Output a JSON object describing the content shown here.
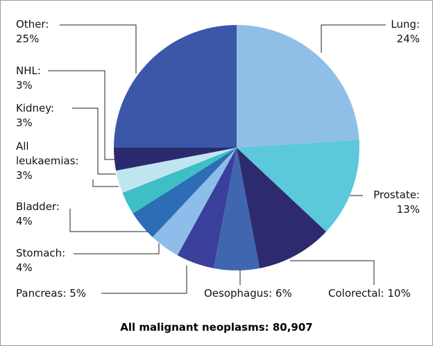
{
  "chart_data": {
    "type": "pie",
    "title": "All malignant neoplasms: 80,907",
    "categories": [
      "Lung:",
      "Prostate:",
      "Colorectal:",
      "Oesophagus:",
      "Pancreas:",
      "Stomach:",
      "Bladder:",
      "All leukaemias:",
      "Kidney:",
      "NHL:",
      "Other:"
    ],
    "values": [
      24,
      13,
      10,
      6,
      5,
      4,
      4,
      3,
      3,
      3,
      25
    ],
    "value_labels": [
      "24%",
      "13%",
      "10%",
      "6%",
      "5%",
      "4%",
      "4%",
      "3%",
      "3%",
      "3%",
      "25%"
    ],
    "colors": [
      "#8fbfe6",
      "#5bc8dc",
      "#2e2a6e",
      "#4166b0",
      "#3a3f9c",
      "#8dbde8",
      "#2d6db5",
      "#3dbfc4",
      "#bfe6f0",
      "#2b2a6e",
      "#3a57a8"
    ]
  }
}
